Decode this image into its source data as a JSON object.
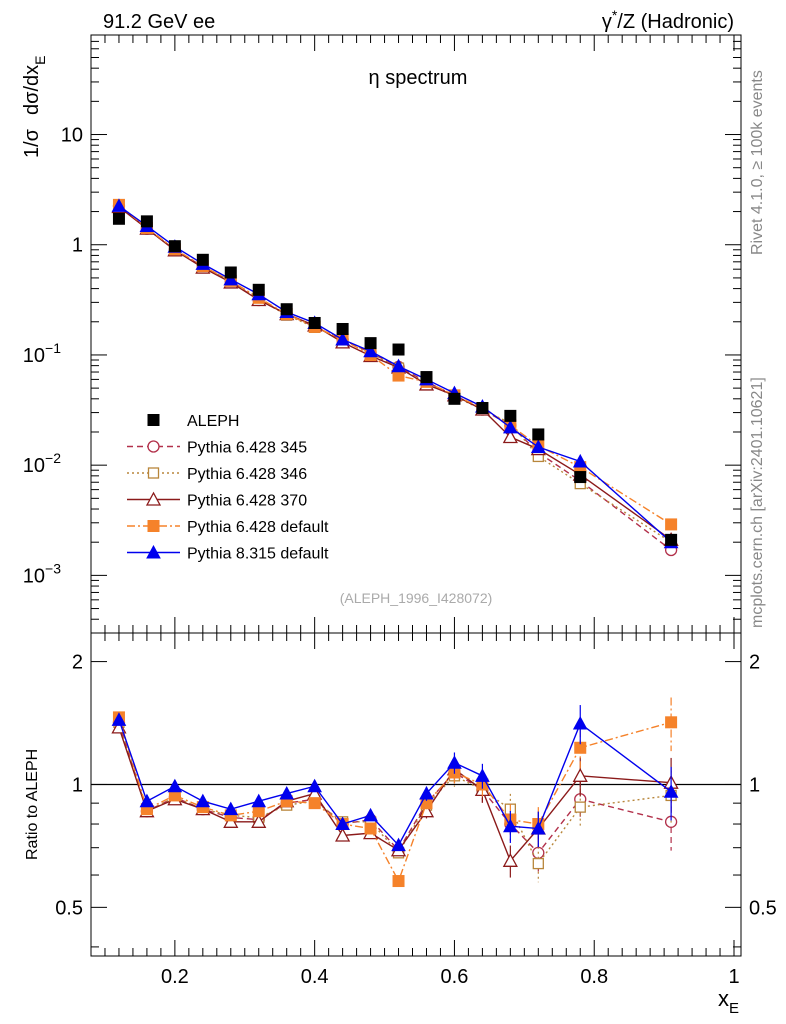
{
  "header": {
    "left": "91.2 GeV ee",
    "right_gamma": "γ",
    "right_star": "*",
    "right_rest": "/Z (Hadronic)"
  },
  "side_labels": {
    "rivet": "Rivet 4.1.0, ≥ 100k events",
    "mcplots": "mcplots.cern.ch [arXiv:2401.10621]"
  },
  "colors": {
    "aleph": "#000000",
    "p345": "#b2304a",
    "p346": "#b8863b",
    "p370": "#8b1a1a",
    "p6def": "#f5822a",
    "p8def": "#0000ee"
  },
  "chart_data": [
    {
      "type": "scatter",
      "title": "η spectrum",
      "ylabel_parts": [
        "1/σ",
        "dσ/dx",
        "E"
      ],
      "xlabel_parts": [
        "x",
        "E"
      ],
      "yscale": "log",
      "ylim": [
        0.0003,
        80
      ],
      "xlim": [
        0.08,
        1.01
      ],
      "y_ticks": [
        {
          "v": 10,
          "label": "10"
        },
        {
          "v": 1,
          "label": "1"
        },
        {
          "v": 0.1,
          "base": "10",
          "exp": "−1"
        },
        {
          "v": 0.01,
          "base": "10",
          "exp": "−2"
        },
        {
          "v": 0.001,
          "base": "10",
          "exp": "−3"
        }
      ],
      "watermark": "(ALEPH_1996_I428072)",
      "legend_position": "left-lower",
      "x": [
        0.12,
        0.16,
        0.2,
        0.24,
        0.28,
        0.32,
        0.36,
        0.4,
        0.44,
        0.48,
        0.52,
        0.56,
        0.6,
        0.64,
        0.68,
        0.72,
        0.78,
        0.91
      ],
      "series": [
        {
          "name": "ALEPH",
          "key": "aleph",
          "marker": "square-filled",
          "values": [
            1.72,
            1.63,
            0.97,
            0.73,
            0.56,
            0.39,
            0.26,
            0.195,
            0.172,
            0.128,
            0.112,
            0.063,
            0.04,
            0.033,
            0.028,
            0.019,
            0.0078,
            0.0021
          ]
        },
        {
          "name": "Pythia 6.428 345",
          "key": "p345",
          "marker": "circle-open",
          "line": "dash",
          "values": [
            2.25,
            1.4,
            0.9,
            0.635,
            0.465,
            0.315,
            0.235,
            0.18,
            0.138,
            0.105,
            0.078,
            0.057,
            0.043,
            0.032,
            0.023,
            0.013,
            0.0072,
            0.0017
          ]
        },
        {
          "name": "Pythia 6.428 346",
          "key": "p346",
          "marker": "square-open",
          "line": "dot",
          "values": [
            2.25,
            1.4,
            0.9,
            0.635,
            0.47,
            0.32,
            0.23,
            0.178,
            0.14,
            0.104,
            0.076,
            0.056,
            0.042,
            0.032,
            0.024,
            0.012,
            0.0068,
            0.002
          ]
        },
        {
          "name": "Pythia 6.428 370",
          "key": "p370",
          "marker": "triangle-open",
          "line": "solid",
          "values": [
            2.2,
            1.4,
            0.89,
            0.62,
            0.455,
            0.315,
            0.235,
            0.185,
            0.13,
            0.098,
            0.077,
            0.054,
            0.043,
            0.032,
            0.018,
            0.014,
            0.0082,
            0.0021
          ]
        },
        {
          "name": "Pythia 6.428 default",
          "key": "p6def",
          "marker": "square-filled",
          "line": "dashdot",
          "values": [
            2.3,
            1.42,
            0.91,
            0.64,
            0.47,
            0.33,
            0.235,
            0.18,
            0.138,
            0.1,
            0.065,
            0.057,
            0.043,
            0.033,
            0.023,
            0.015,
            0.0096,
            0.0029
          ]
        },
        {
          "name": "Pythia 8.315 default",
          "key": "p8def",
          "marker": "triangle-filled",
          "line": "solid",
          "values": [
            2.25,
            1.48,
            0.96,
            0.67,
            0.485,
            0.355,
            0.245,
            0.195,
            0.138,
            0.108,
            0.079,
            0.06,
            0.045,
            0.034,
            0.022,
            0.0146,
            0.0108,
            0.002
          ]
        }
      ]
    },
    {
      "type": "scatter",
      "ylabel": "Ratio to ALEPH",
      "yscale": "log",
      "ylim": [
        0.38,
        2.35
      ],
      "reference_line": 1,
      "y_ticks": [
        {
          "v": 2,
          "label": "2"
        },
        {
          "v": 1,
          "label": "1"
        },
        {
          "v": 0.5,
          "label": "0.5"
        }
      ],
      "x_ticks": [
        {
          "v": 0.2,
          "label": "0.2"
        },
        {
          "v": 0.4,
          "label": "0.4"
        },
        {
          "v": 0.6,
          "label": "0.6"
        },
        {
          "v": 0.8,
          "label": "0.8"
        },
        {
          "v": 1.0,
          "label": "1"
        }
      ],
      "x": [
        0.12,
        0.16,
        0.2,
        0.24,
        0.28,
        0.32,
        0.36,
        0.4,
        0.44,
        0.48,
        0.52,
        0.56,
        0.6,
        0.64,
        0.68,
        0.72,
        0.78,
        0.91
      ],
      "series": [
        {
          "name": "Pythia 6.428 345",
          "key": "p345",
          "values": [
            1.42,
            0.86,
            0.93,
            0.87,
            0.83,
            0.82,
            0.9,
            0.92,
            0.8,
            0.82,
            0.69,
            0.9,
            1.07,
            0.97,
            0.8,
            0.68,
            0.92,
            0.81
          ],
          "errors": [
            0.03,
            0.02,
            0.02,
            0.02,
            0.02,
            0.02,
            0.02,
            0.03,
            0.03,
            0.03,
            0.03,
            0.04,
            0.06,
            0.07,
            0.09,
            0.1,
            0.11,
            0.15
          ]
        },
        {
          "name": "Pythia 6.428 346",
          "key": "p346",
          "values": [
            1.42,
            0.86,
            0.93,
            0.87,
            0.84,
            0.83,
            0.89,
            0.91,
            0.81,
            0.81,
            0.68,
            0.89,
            1.05,
            0.97,
            0.87,
            0.64,
            0.88,
            0.94
          ],
          "errors": [
            0.03,
            0.02,
            0.02,
            0.02,
            0.02,
            0.02,
            0.02,
            0.03,
            0.03,
            0.03,
            0.03,
            0.04,
            0.06,
            0.07,
            0.09,
            0.1,
            0.11,
            0.15
          ]
        },
        {
          "name": "Pythia 6.428 370",
          "key": "p370",
          "values": [
            1.38,
            0.86,
            0.92,
            0.87,
            0.81,
            0.81,
            0.91,
            0.95,
            0.75,
            0.76,
            0.69,
            0.86,
            1.09,
            0.97,
            0.65,
            0.78,
            1.05,
            1.01
          ],
          "errors": [
            0.03,
            0.02,
            0.02,
            0.02,
            0.02,
            0.02,
            0.02,
            0.03,
            0.03,
            0.03,
            0.03,
            0.04,
            0.06,
            0.07,
            0.09,
            0.1,
            0.11,
            0.15
          ]
        },
        {
          "name": "Pythia 6.428 default",
          "key": "p6def",
          "values": [
            1.46,
            0.87,
            0.94,
            0.88,
            0.84,
            0.86,
            0.91,
            0.9,
            0.8,
            0.78,
            0.58,
            0.9,
            1.07,
            1.0,
            0.82,
            0.8,
            1.23,
            1.42
          ],
          "errors": [
            0.03,
            0.02,
            0.02,
            0.02,
            0.02,
            0.02,
            0.02,
            0.03,
            0.03,
            0.03,
            0.03,
            0.04,
            0.06,
            0.07,
            0.09,
            0.1,
            0.11,
            0.15
          ]
        },
        {
          "name": "Pythia 8.315 default",
          "key": "p8def",
          "values": [
            1.44,
            0.91,
            0.99,
            0.91,
            0.87,
            0.91,
            0.95,
            0.99,
            0.8,
            0.84,
            0.71,
            0.95,
            1.13,
            1.05,
            0.79,
            0.78,
            1.41,
            0.96
          ],
          "errors": [
            0.03,
            0.02,
            0.02,
            0.02,
            0.02,
            0.02,
            0.02,
            0.03,
            0.03,
            0.03,
            0.03,
            0.04,
            0.06,
            0.07,
            0.09,
            0.1,
            0.11,
            0.15
          ]
        }
      ]
    }
  ]
}
